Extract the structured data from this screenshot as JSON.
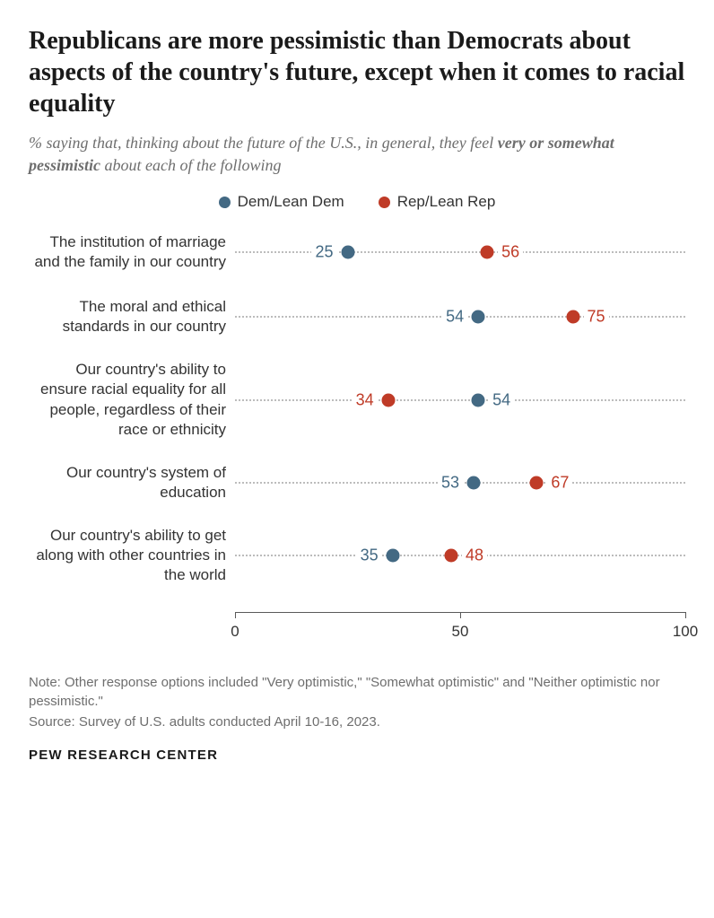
{
  "title": "Republicans are more pessimistic than Democrats about aspects of the country's future, except when it comes to racial equality",
  "subtitle_prefix": "% saying that, thinking about the future of the U.S., in general, they feel ",
  "subtitle_emph": "very or somewhat pessimistic",
  "subtitle_suffix": " about each of the following",
  "colors": {
    "dem": "#436983",
    "rep": "#bf3b27",
    "bg": "#ffffff",
    "grid": "#bcbcbc",
    "axis": "#5a5a5a"
  },
  "legend": {
    "dem": "Dem/Lean Dem",
    "rep": "Rep/Lean Rep"
  },
  "axis": {
    "min": 0,
    "max": 100,
    "ticks": [
      0,
      50,
      100
    ]
  },
  "rows": [
    {
      "label": "The institution of marriage and the family in our country",
      "dem": 25,
      "rep": 56,
      "dem_label_side": "left",
      "rep_label_side": "right"
    },
    {
      "label": "The moral and ethical standards in our country",
      "dem": 54,
      "rep": 75,
      "dem_label_side": "left",
      "rep_label_side": "right"
    },
    {
      "label": "Our country's ability to ensure racial equality for all people, regardless of their race or ethnicity",
      "dem": 54,
      "rep": 34,
      "dem_label_side": "right",
      "rep_label_side": "left"
    },
    {
      "label": "Our country's system of education",
      "dem": 53,
      "rep": 67,
      "dem_label_side": "left",
      "rep_label_side": "right"
    },
    {
      "label": "Our country's ability to get along with other countries in the world",
      "dem": 35,
      "rep": 48,
      "dem_label_side": "left",
      "rep_label_side": "right"
    }
  ],
  "note": "Note: Other response options included \"Very optimistic,\" \"Somewhat optimistic\" and \"Neither optimistic nor pessimistic.\"",
  "source": "Source: Survey of U.S. adults conducted April 10-16, 2023.",
  "attribution": "PEW RESEARCH CENTER"
}
